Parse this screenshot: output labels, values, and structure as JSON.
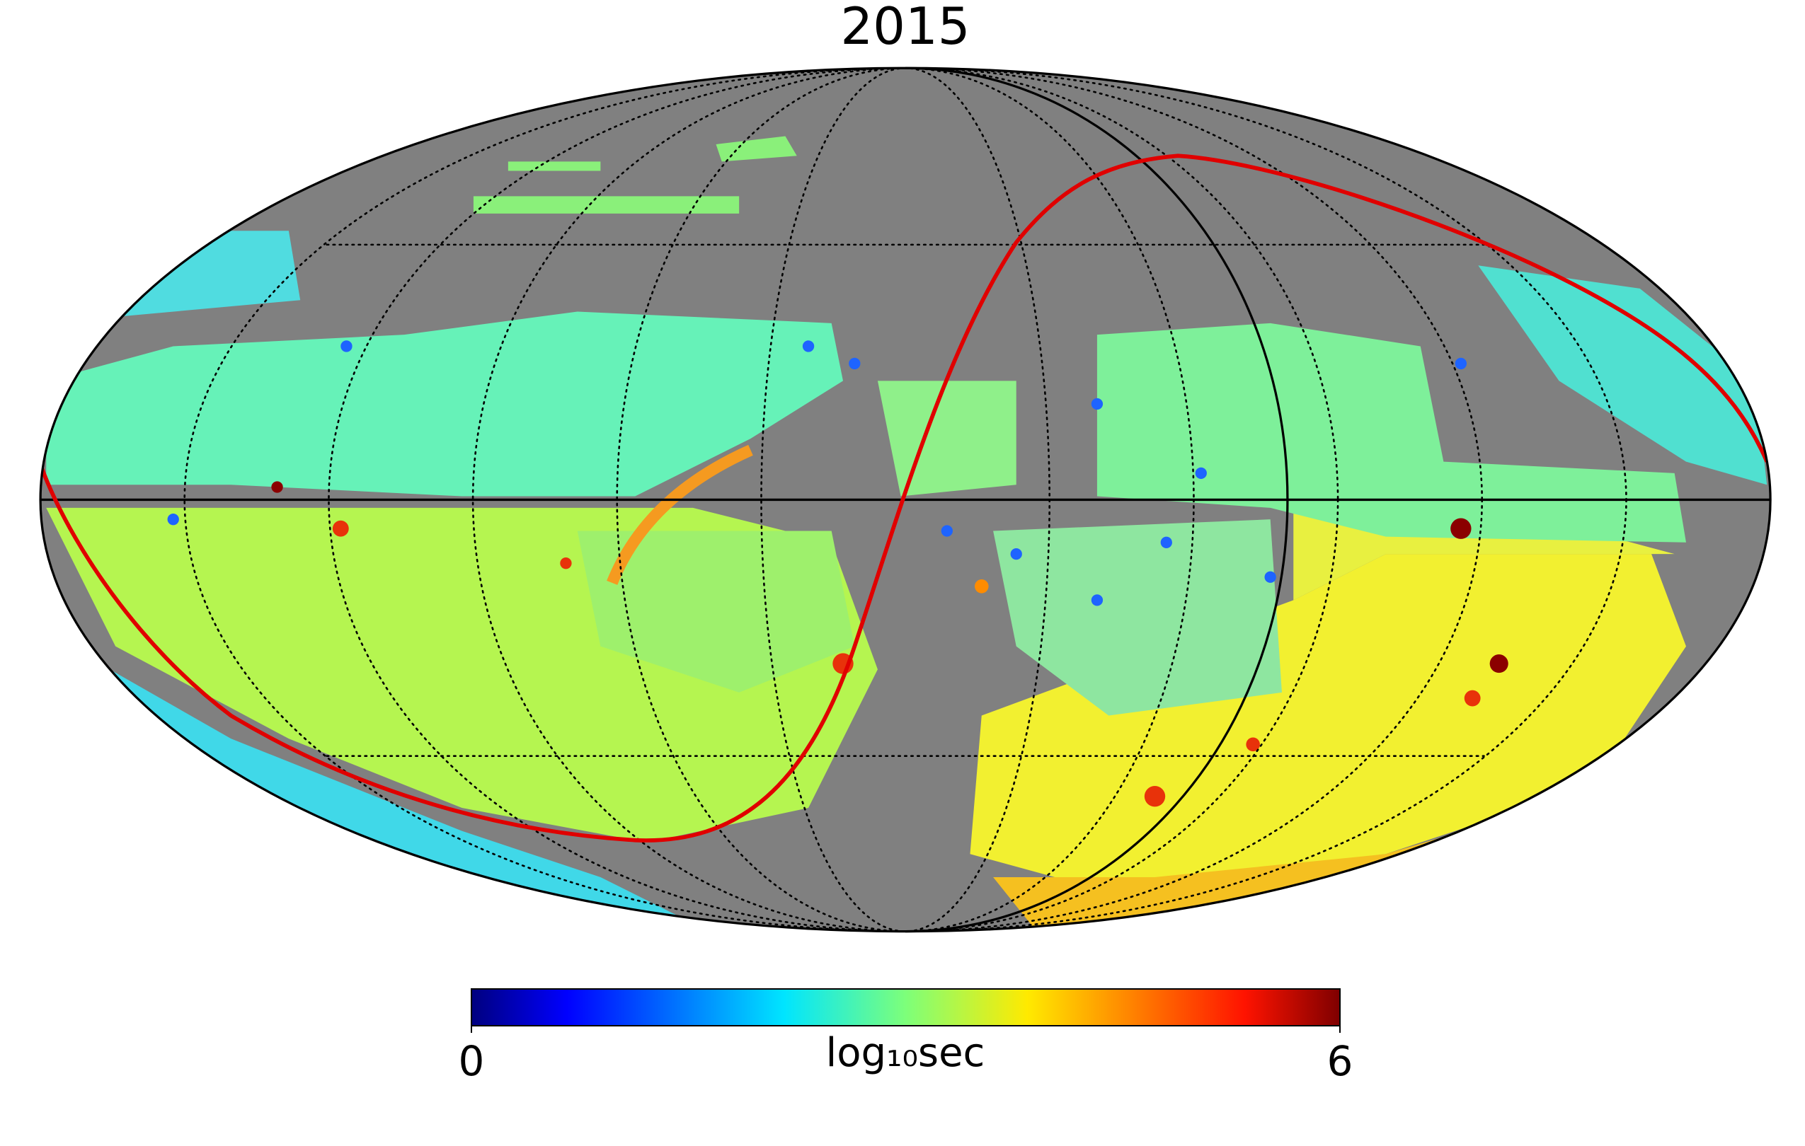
{
  "title": "2015",
  "colorbar": {
    "label": "log₁₀sec",
    "range": [
      0,
      6
    ],
    "ticks": [
      0,
      6
    ],
    "colormap": "jet"
  }
}
